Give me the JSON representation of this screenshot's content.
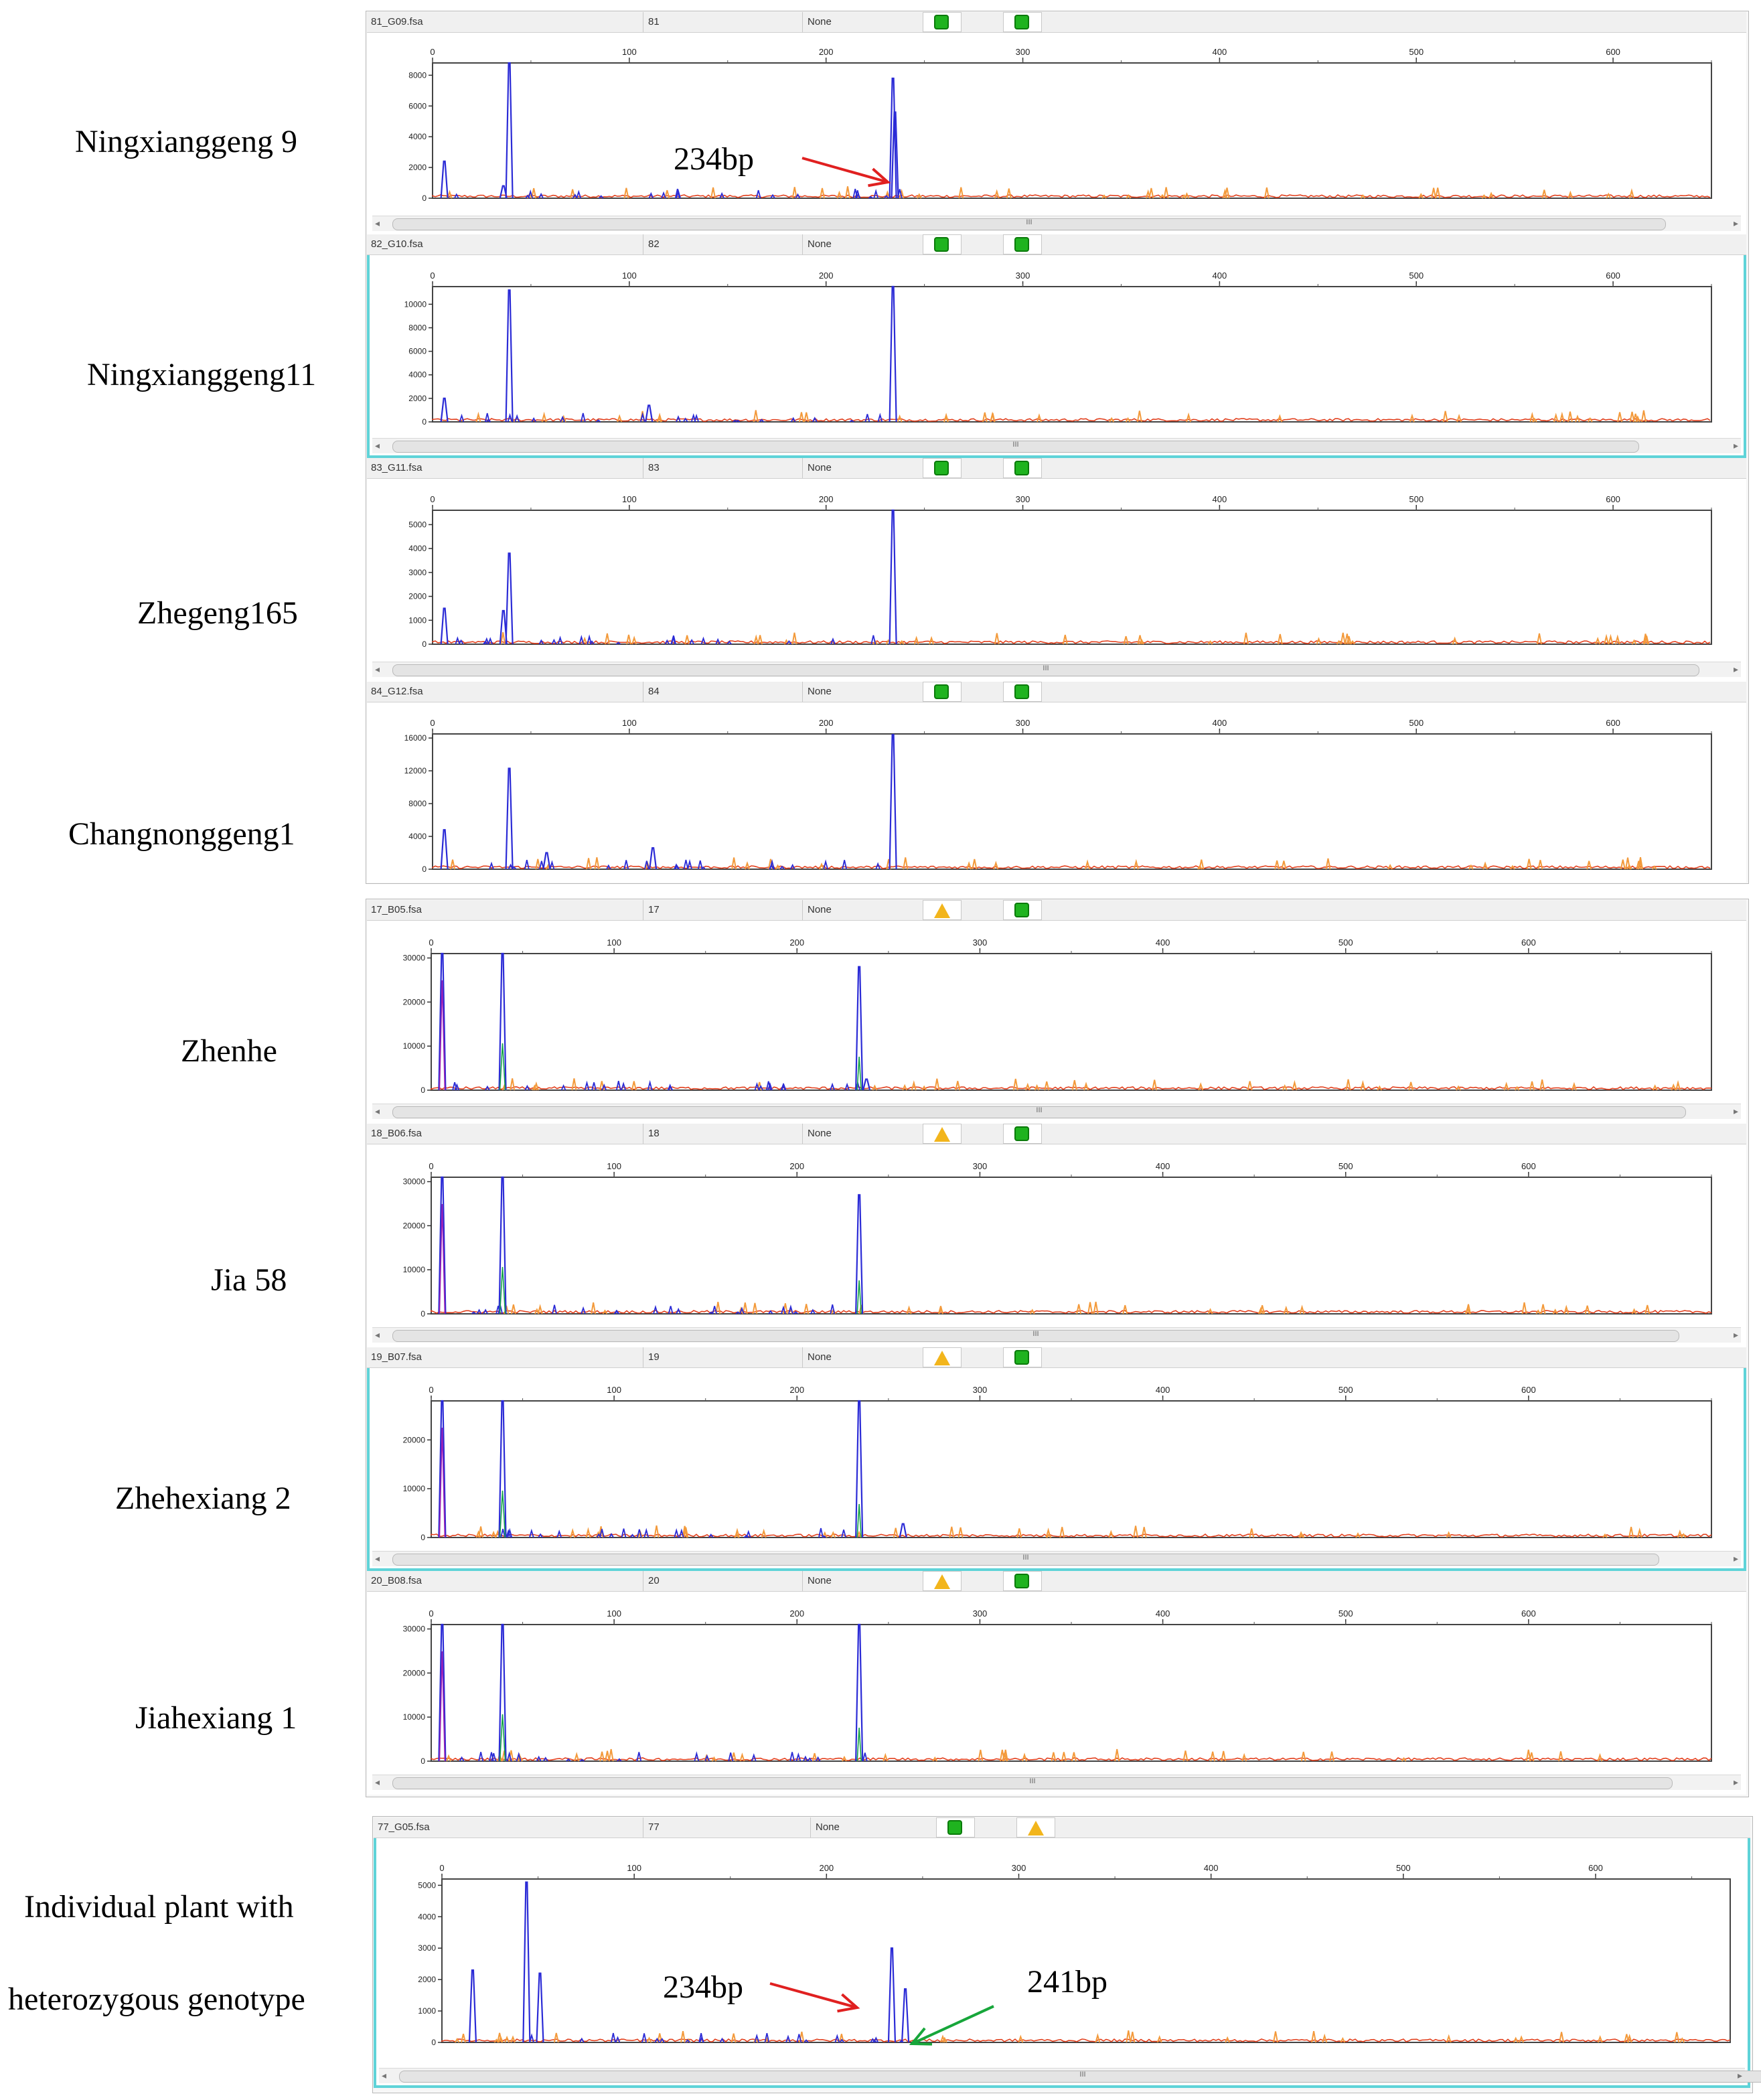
{
  "figure": {
    "accent_colors": {
      "blue_trace": "#2b2bd6",
      "orange_trace": "#f39a3b",
      "red_trace": "#e2401e",
      "green_trace": "#16a34a",
      "purple_trace": "#9b1fb5",
      "selection": "#5fd3d8",
      "red_arrow": "#e02020",
      "green_arrow": "#17a63a"
    }
  },
  "labels": {
    "l1": "Ningxianggeng 9",
    "l2": "Ningxianggeng11",
    "l3": "Zhegeng165",
    "l4": "Changnonggeng1",
    "l5": "Zhenhe",
    "l6": "Jia 58",
    "l7": "Zhehexiang 2",
    "l8": "Jiahexiang 1",
    "l9a": "Individual plant with",
    "l9b": "heterozygous genotype"
  },
  "annotations": {
    "a1": "234bp",
    "a2": "234bp",
    "a3": "241bp"
  },
  "lanes": [
    {
      "file": "81_G09.fsa",
      "num": "81",
      "dye": "None",
      "status": [
        "ok",
        "ok"
      ]
    },
    {
      "file": "82_G10.fsa",
      "num": "82",
      "dye": "None",
      "status": [
        "ok",
        "ok"
      ]
    },
    {
      "file": "83_G11.fsa",
      "num": "83",
      "dye": "None",
      "status": [
        "ok",
        "ok"
      ]
    },
    {
      "file": "84_G12.fsa",
      "num": "84",
      "dye": "None",
      "status": [
        "ok",
        "ok"
      ]
    },
    {
      "file": "17_B05.fsa",
      "num": "17",
      "dye": "None",
      "status": [
        "warn",
        "ok"
      ]
    },
    {
      "file": "18_B06.fsa",
      "num": "18",
      "dye": "None",
      "status": [
        "warn",
        "ok"
      ]
    },
    {
      "file": "19_B07.fsa",
      "num": "19",
      "dye": "None",
      "status": [
        "warn",
        "ok"
      ]
    },
    {
      "file": "20_B08.fsa",
      "num": "20",
      "dye": "None",
      "status": [
        "warn",
        "ok"
      ]
    },
    {
      "file": "77_G05.fsa",
      "num": "77",
      "dye": "None",
      "status": [
        "ok",
        "warn"
      ]
    }
  ],
  "scroll_label": "III",
  "chart_data": [
    {
      "type": "line",
      "title": "Ningxianggeng 9",
      "x_ticks": [
        0,
        100,
        200,
        300,
        400,
        500,
        600
      ],
      "xlim": [
        0,
        650
      ],
      "y_ticks": [
        0,
        2000,
        4000,
        6000,
        8000
      ],
      "ylim": [
        0,
        8800
      ],
      "peaks": [
        {
          "x": 6,
          "y": 2400
        },
        {
          "x": 36,
          "y": 800
        },
        {
          "x": 39,
          "y": 8800
        },
        {
          "x": 234,
          "y": 7800
        },
        {
          "x": 235,
          "y": 5600
        }
      ]
    },
    {
      "type": "line",
      "title": "Ningxianggeng11",
      "x_ticks": [
        0,
        100,
        200,
        300,
        400,
        500,
        600
      ],
      "xlim": [
        0,
        650
      ],
      "y_ticks": [
        0,
        2000,
        4000,
        6000,
        8000,
        10000
      ],
      "ylim": [
        0,
        11500
      ],
      "peaks": [
        {
          "x": 6,
          "y": 2000
        },
        {
          "x": 39,
          "y": 11200
        },
        {
          "x": 110,
          "y": 1400
        },
        {
          "x": 234,
          "y": 11800
        }
      ]
    },
    {
      "type": "line",
      "title": "Zhegeng165",
      "x_ticks": [
        0,
        100,
        200,
        300,
        400,
        500,
        600
      ],
      "xlim": [
        0,
        650
      ],
      "y_ticks": [
        0,
        1000,
        2000,
        3000,
        4000,
        5000
      ],
      "ylim": [
        0,
        5600
      ],
      "peaks": [
        {
          "x": 6,
          "y": 1500
        },
        {
          "x": 36,
          "y": 1400
        },
        {
          "x": 39,
          "y": 3800
        },
        {
          "x": 234,
          "y": 5600
        }
      ]
    },
    {
      "type": "line",
      "title": "Changnonggeng1",
      "x_ticks": [
        0,
        100,
        200,
        300,
        400,
        500,
        600
      ],
      "xlim": [
        0,
        650
      ],
      "y_ticks": [
        0,
        4000,
        8000,
        12000,
        16000
      ],
      "ylim": [
        0,
        16500
      ],
      "peaks": [
        {
          "x": 6,
          "y": 4800
        },
        {
          "x": 39,
          "y": 12300
        },
        {
          "x": 58,
          "y": 2000
        },
        {
          "x": 112,
          "y": 2600
        },
        {
          "x": 234,
          "y": 16400
        }
      ]
    },
    {
      "type": "line",
      "title": "Zhenhe",
      "x_ticks": [
        0,
        100,
        200,
        300,
        400,
        500,
        600
      ],
      "xlim": [
        0,
        700
      ],
      "y_ticks": [
        0,
        10000,
        20000,
        30000
      ],
      "ylim": [
        0,
        31000
      ],
      "peaks": [
        {
          "x": 6,
          "y": 31000
        },
        {
          "x": 39,
          "y": 31000
        },
        {
          "x": 234,
          "y": 28000
        },
        {
          "x": 238,
          "y": 2500
        }
      ]
    },
    {
      "type": "line",
      "title": "Jia 58",
      "x_ticks": [
        0,
        100,
        200,
        300,
        400,
        500,
        600
      ],
      "xlim": [
        0,
        700
      ],
      "y_ticks": [
        0,
        10000,
        20000,
        30000
      ],
      "ylim": [
        0,
        31000
      ],
      "peaks": [
        {
          "x": 6,
          "y": 31000
        },
        {
          "x": 39,
          "y": 31000
        },
        {
          "x": 234,
          "y": 27000
        }
      ]
    },
    {
      "type": "line",
      "title": "Zhehexiang 2",
      "x_ticks": [
        0,
        100,
        200,
        300,
        400,
        500,
        600
      ],
      "xlim": [
        0,
        700
      ],
      "y_ticks": [
        0,
        10000,
        20000
      ],
      "ylim": [
        0,
        28000
      ],
      "peaks": [
        {
          "x": 6,
          "y": 28000
        },
        {
          "x": 39,
          "y": 28000
        },
        {
          "x": 234,
          "y": 28000
        },
        {
          "x": 258,
          "y": 2800
        }
      ]
    },
    {
      "type": "line",
      "title": "Jiahexiang 1",
      "x_ticks": [
        0,
        100,
        200,
        300,
        400,
        500,
        600
      ],
      "xlim": [
        0,
        700
      ],
      "y_ticks": [
        0,
        10000,
        20000,
        30000
      ],
      "ylim": [
        0,
        31000
      ],
      "peaks": [
        {
          "x": 6,
          "y": 31000
        },
        {
          "x": 39,
          "y": 31000
        },
        {
          "x": 234,
          "y": 31000
        }
      ]
    },
    {
      "type": "line",
      "title": "Individual plant with heterozygous genotype",
      "x_ticks": [
        0,
        100,
        200,
        300,
        400,
        500,
        600
      ],
      "xlim": [
        0,
        670
      ],
      "y_ticks": [
        0,
        1000,
        2000,
        3000,
        4000,
        5000
      ],
      "ylim": [
        0,
        5200
      ],
      "peaks": [
        {
          "x": 16,
          "y": 2300
        },
        {
          "x": 44,
          "y": 5100
        },
        {
          "x": 51,
          "y": 2200
        },
        {
          "x": 234,
          "y": 3000
        },
        {
          "x": 241,
          "y": 1700
        }
      ]
    }
  ]
}
